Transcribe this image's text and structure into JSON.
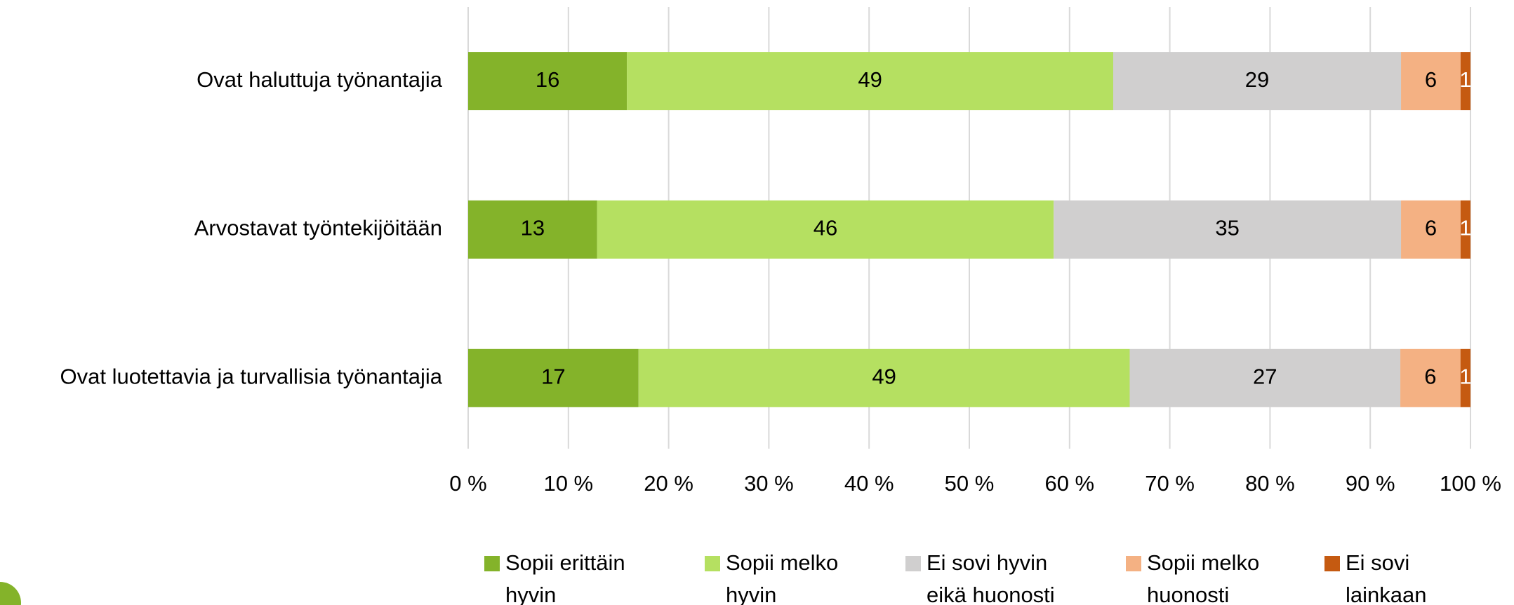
{
  "chart_data": {
    "type": "bar",
    "orientation": "horizontal",
    "stack": "percent",
    "categories": [
      "Ovat haluttuja työnantajia",
      "Arvostavat työntekijöitään",
      "Ovat luotettavia ja turvallisia työnantajia"
    ],
    "series": [
      {
        "name": "Sopii erittäin hyvin",
        "color": "#84b32a",
        "label_color": "#000000",
        "values": [
          16,
          13,
          17
        ]
      },
      {
        "name": "Sopii melko hyvin",
        "color": "#b5e061",
        "label_color": "#000000",
        "values": [
          49,
          46,
          49
        ]
      },
      {
        "name": "Ei sovi hyvin eikä huonosti",
        "color": "#d0cfcf",
        "label_color": "#000000",
        "values": [
          29,
          35,
          27
        ]
      },
      {
        "name": "Sopii melko huonosti",
        "color": "#f4b183",
        "label_color": "#000000",
        "values": [
          6,
          6,
          6
        ]
      },
      {
        "name": "Ei sovi lainkaan",
        "color": "#c55a11",
        "label_color": "#ffffff",
        "values": [
          1,
          1,
          1
        ]
      }
    ],
    "xlim": [
      0,
      100
    ],
    "xticks": [
      {
        "value": 0,
        "label": "0 %"
      },
      {
        "value": 10,
        "label": "10 %"
      },
      {
        "value": 20,
        "label": "20 %"
      },
      {
        "value": 30,
        "label": "30 %"
      },
      {
        "value": 40,
        "label": "40 %"
      },
      {
        "value": 50,
        "label": "50 %"
      },
      {
        "value": 60,
        "label": "60 %"
      },
      {
        "value": 70,
        "label": "70 %"
      },
      {
        "value": 80,
        "label": "80 %"
      },
      {
        "value": 90,
        "label": "90 %"
      },
      {
        "value": 100,
        "label": "100 %"
      }
    ],
    "grid": true,
    "legend": "bottom"
  }
}
